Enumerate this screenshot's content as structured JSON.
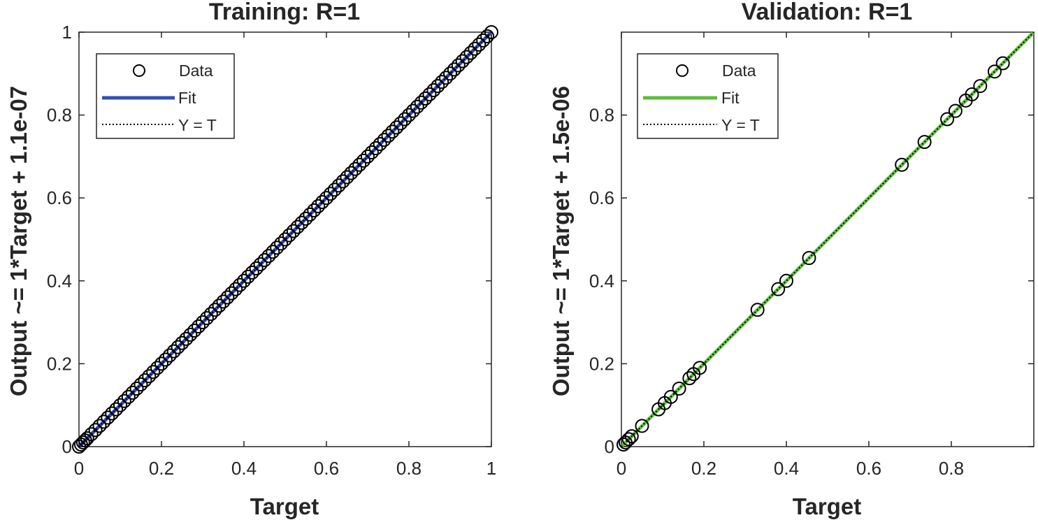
{
  "chart_data": [
    {
      "type": "scatter",
      "title": "Training: R=1",
      "xlabel": "Target",
      "ylabel": "Output ~= 1*Target + 1.1e-07",
      "xlim": [
        0,
        1
      ],
      "ylim": [
        0,
        1
      ],
      "xticks": [
        "0",
        "0.2",
        "0.4",
        "0.6",
        "0.8",
        "1"
      ],
      "yticks": [
        "0",
        "0.2",
        "0.4",
        "0.6",
        "0.8",
        "1"
      ],
      "fit_color": "#3050b8",
      "legend": [
        "Data",
        "Fit",
        "Y = T"
      ],
      "legend_position": "top-left",
      "series": [
        {
          "name": "Data",
          "x": [
            0,
            0.005,
            0.01,
            0.015,
            0.02,
            0.03,
            0.04,
            0.05,
            0.06,
            0.07,
            0.08,
            0.09,
            0.1,
            0.11,
            0.12,
            0.13,
            0.14,
            0.15,
            0.16,
            0.17,
            0.18,
            0.19,
            0.2,
            0.21,
            0.22,
            0.23,
            0.24,
            0.25,
            0.26,
            0.27,
            0.28,
            0.29,
            0.3,
            0.31,
            0.32,
            0.33,
            0.34,
            0.35,
            0.36,
            0.37,
            0.38,
            0.39,
            0.4,
            0.41,
            0.42,
            0.43,
            0.44,
            0.45,
            0.46,
            0.47,
            0.48,
            0.49,
            0.5,
            0.51,
            0.52,
            0.53,
            0.54,
            0.55,
            0.56,
            0.57,
            0.58,
            0.59,
            0.6,
            0.61,
            0.62,
            0.63,
            0.64,
            0.65,
            0.66,
            0.67,
            0.68,
            0.69,
            0.7,
            0.71,
            0.72,
            0.73,
            0.74,
            0.75,
            0.76,
            0.77,
            0.78,
            0.79,
            0.8,
            0.81,
            0.82,
            0.83,
            0.84,
            0.85,
            0.86,
            0.87,
            0.88,
            0.89,
            0.9,
            0.91,
            0.92,
            0.93,
            0.94,
            0.95,
            0.96,
            0.97,
            0.98,
            0.99,
            1.0
          ]
        },
        {
          "name": "Fit",
          "slope": 1,
          "intercept": 1.1e-07
        },
        {
          "name": "Y = T",
          "slope": 1,
          "intercept": 0
        }
      ]
    },
    {
      "type": "scatter",
      "title": "Validation: R=1",
      "xlabel": "Target",
      "ylabel": "Output ~= 1*Target + 1.5e-06",
      "xlim": [
        0,
        1
      ],
      "ylim": [
        0,
        1
      ],
      "xticks": [
        "0",
        "0.2",
        "0.4",
        "0.6",
        "0.8"
      ],
      "yticks": [
        "0",
        "0.2",
        "0.4",
        "0.6",
        "0.8"
      ],
      "fit_color": "#5cbf3a",
      "legend": [
        "Data",
        "Fit",
        "Y = T"
      ],
      "legend_position": "top-left",
      "series": [
        {
          "name": "Data",
          "x": [
            0.005,
            0.01,
            0.018,
            0.025,
            0.05,
            0.09,
            0.105,
            0.12,
            0.14,
            0.165,
            0.175,
            0.19,
            0.33,
            0.38,
            0.4,
            0.455,
            0.68,
            0.735,
            0.79,
            0.81,
            0.835,
            0.85,
            0.87,
            0.905,
            0.925
          ]
        },
        {
          "name": "Fit",
          "slope": 1,
          "intercept": 1.5e-06
        },
        {
          "name": "Y = T",
          "slope": 1,
          "intercept": 0
        }
      ]
    }
  ]
}
